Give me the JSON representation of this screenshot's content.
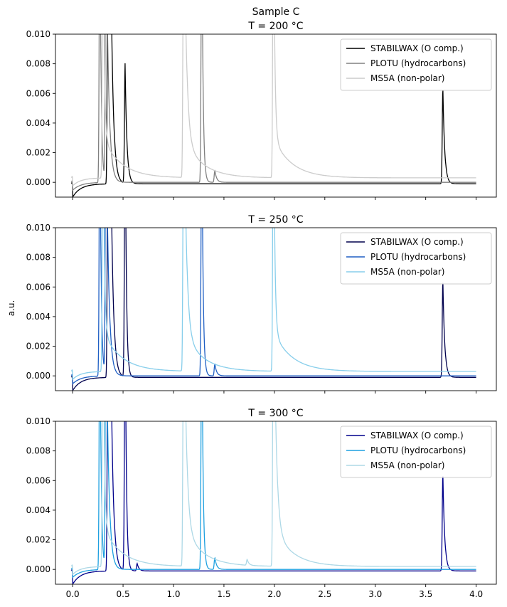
{
  "figure": {
    "ylabel": "a.u.",
    "xticks": [
      "0.0",
      "0.5",
      "1.0",
      "1.5",
      "2.0",
      "2.5",
      "3.0",
      "3.5",
      "4.0"
    ]
  },
  "chart_data": [
    {
      "type": "line",
      "title_lines": [
        "Sample C",
        "T = 200 °C"
      ],
      "xlabel": "",
      "ylabel": "a.u.",
      "xlim": [
        -0.17,
        4.2
      ],
      "ylim": [
        -0.001,
        0.01
      ],
      "yticks": [
        "0.000",
        "0.002",
        "0.004",
        "0.006",
        "0.008",
        "0.010"
      ],
      "legend_position": "top-right",
      "series": [
        {
          "name": "STABILWAX (O comp.)",
          "color": "#000000",
          "peaks": [
            {
              "x": 0.35,
              "h": 0.02
            },
            {
              "x": 0.37,
              "h": 0.02
            },
            {
              "x": 0.52,
              "h": 0.0081
            },
            {
              "x": 3.67,
              "h": 0.0065
            }
          ],
          "baseline": -0.0001
        },
        {
          "name": "PLOTU (hydrocarbons)",
          "color": "#808080",
          "peaks": [
            {
              "x": 0.27,
              "h": 0.02
            },
            {
              "x": 0.33,
              "h": 0.02
            },
            {
              "x": 1.28,
              "h": 0.02
            },
            {
              "x": 1.41,
              "h": 0.0008
            }
          ],
          "baseline": 0.0
        },
        {
          "name": "MS5A (non-polar)",
          "color": "#cccccc",
          "peaks": [
            {
              "x": 0.3,
              "h": 0.02
            },
            {
              "x": 1.1,
              "h": 0.02
            },
            {
              "x": 1.99,
              "h": 0.02
            }
          ],
          "baseline": 0.0003
        }
      ]
    },
    {
      "type": "line",
      "title_lines": [
        "T = 250 °C"
      ],
      "xlabel": "",
      "ylabel": "a.u.",
      "xlim": [
        -0.17,
        4.2
      ],
      "ylim": [
        -0.001,
        0.01
      ],
      "yticks": [
        "0.000",
        "0.002",
        "0.004",
        "0.006",
        "0.008",
        "0.010"
      ],
      "legend_position": "top-right",
      "series": [
        {
          "name": "STABILWAX (O comp.)",
          "color": "#00004d",
          "peaks": [
            {
              "x": 0.35,
              "h": 0.02
            },
            {
              "x": 0.37,
              "h": 0.02
            },
            {
              "x": 0.52,
              "h": 0.02
            },
            {
              "x": 3.67,
              "h": 0.0066
            }
          ],
          "baseline": -0.0001
        },
        {
          "name": "PLOTU (hydrocarbons)",
          "color": "#1f5fc4",
          "peaks": [
            {
              "x": 0.27,
              "h": 0.02
            },
            {
              "x": 0.33,
              "h": 0.02
            },
            {
              "x": 1.28,
              "h": 0.02
            },
            {
              "x": 1.41,
              "h": 0.0008
            }
          ],
          "baseline": 0.0
        },
        {
          "name": "MS5A (non-polar)",
          "color": "#87ceeb",
          "peaks": [
            {
              "x": 0.3,
              "h": 0.02
            },
            {
              "x": 1.1,
              "h": 0.02
            },
            {
              "x": 1.99,
              "h": 0.02
            }
          ],
          "baseline": 0.0003
        }
      ]
    },
    {
      "type": "line",
      "title_lines": [
        "T = 300 °C"
      ],
      "xlabel": "",
      "ylabel": "a.u.",
      "xlim": [
        -0.17,
        4.2
      ],
      "ylim": [
        -0.001,
        0.01
      ],
      "yticks": [
        "0.000",
        "0.002",
        "0.004",
        "0.006",
        "0.008",
        "0.010"
      ],
      "legend_position": "top-right",
      "series": [
        {
          "name": "STABILWAX (O comp.)",
          "color": "#00008b",
          "peaks": [
            {
              "x": 0.35,
              "h": 0.02
            },
            {
              "x": 0.37,
              "h": 0.02
            },
            {
              "x": 0.52,
              "h": 0.02
            },
            {
              "x": 0.64,
              "h": 0.0005
            },
            {
              "x": 3.67,
              "h": 0.0066
            }
          ],
          "baseline": -0.0001
        },
        {
          "name": "PLOTU (hydrocarbons)",
          "color": "#1ea0e0",
          "peaks": [
            {
              "x": 0.27,
              "h": 0.02
            },
            {
              "x": 0.33,
              "h": 0.02
            },
            {
              "x": 1.28,
              "h": 0.02
            },
            {
              "x": 1.41,
              "h": 0.0008
            }
          ],
          "baseline": 0.0
        },
        {
          "name": "MS5A (non-polar)",
          "color": "#add8e6",
          "peaks": [
            {
              "x": 0.3,
              "h": 0.02
            },
            {
              "x": 1.1,
              "h": 0.02
            },
            {
              "x": 1.73,
              "h": 0.0004
            },
            {
              "x": 1.99,
              "h": 0.02
            }
          ],
          "baseline": 0.0002
        }
      ]
    }
  ]
}
